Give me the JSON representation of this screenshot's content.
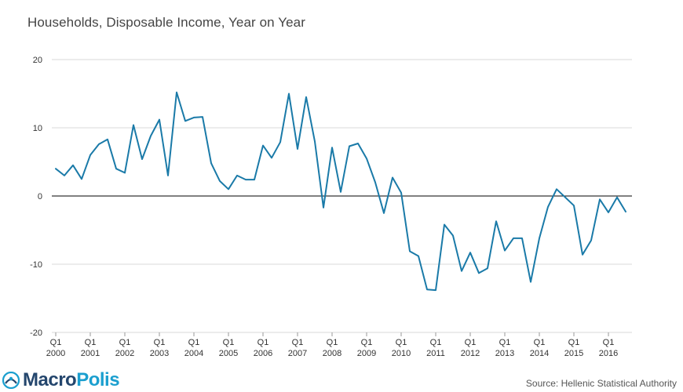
{
  "title": "Households, Disposable Income, Year on Year",
  "source": "Source: Hellenic Statistical Authority",
  "logo": {
    "part1": "Macro",
    "part2": "Polis"
  },
  "colors": {
    "line": "#1a7aa8",
    "grid": "#d9d9d9",
    "zero": "#000000",
    "logo_dark": "#24466d",
    "logo_light": "#1b9fcf"
  },
  "chart_data": {
    "type": "line",
    "title": "Households, Disposable Income, Year on Year",
    "xlabel": "",
    "ylabel": "",
    "ylim": [
      -20,
      20
    ],
    "yticks": [
      20,
      10,
      0,
      -10,
      -20
    ],
    "x_ticks": [
      {
        "quarter": "Q1",
        "year": "2000"
      },
      {
        "quarter": "Q1",
        "year": "2001"
      },
      {
        "quarter": "Q1",
        "year": "2002"
      },
      {
        "quarter": "Q1",
        "year": "2003"
      },
      {
        "quarter": "Q1",
        "year": "2004"
      },
      {
        "quarter": "Q1",
        "year": "2005"
      },
      {
        "quarter": "Q1",
        "year": "2006"
      },
      {
        "quarter": "Q1",
        "year": "2007"
      },
      {
        "quarter": "Q1",
        "year": "2008"
      },
      {
        "quarter": "Q1",
        "year": "2009"
      },
      {
        "quarter": "Q1",
        "year": "2010"
      },
      {
        "quarter": "Q1",
        "year": "2011"
      },
      {
        "quarter": "Q1",
        "year": "2012"
      },
      {
        "quarter": "Q1",
        "year": "2013"
      },
      {
        "quarter": "Q1",
        "year": "2014"
      },
      {
        "quarter": "Q1",
        "year": "2015"
      },
      {
        "quarter": "Q1",
        "year": "2016"
      }
    ],
    "series": [
      {
        "name": "Households, Disposable Income, Year on Year",
        "start": "Q1 2000",
        "values": [
          4.0,
          3.0,
          4.5,
          2.5,
          6.0,
          7.6,
          8.3,
          4.0,
          3.4,
          10.4,
          5.4,
          8.8,
          11.2,
          3.0,
          15.2,
          11.0,
          11.5,
          11.6,
          4.8,
          2.2,
          1.0,
          3.0,
          2.4,
          2.4,
          7.4,
          5.6,
          7.9,
          15.0,
          6.9,
          14.5,
          8.0,
          -1.7,
          7.1,
          0.6,
          7.3,
          7.7,
          5.5,
          2.0,
          -2.5,
          2.7,
          0.5,
          -8.1,
          -8.8,
          -13.7,
          -13.8,
          -4.2,
          -5.8,
          -11.0,
          -8.3,
          -11.3,
          -10.6,
          -3.7,
          -8.0,
          -6.2,
          -6.2,
          -12.6,
          -6.2,
          -1.6,
          1.0,
          -0.2,
          -1.4,
          -8.6,
          -6.5,
          -0.5,
          -2.4,
          -0.2,
          -2.3
        ]
      }
    ]
  }
}
